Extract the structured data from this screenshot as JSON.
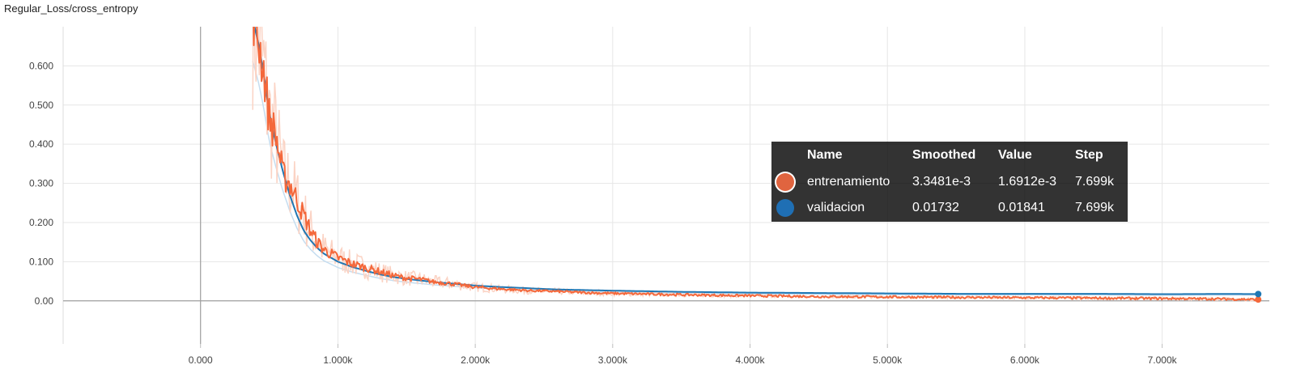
{
  "chart_title": "Regular_Loss/cross_entropy",
  "chart_data": {
    "type": "line",
    "title": "Regular_Loss/cross_entropy",
    "xlabel": "",
    "ylabel": "",
    "xlim": [
      -1000,
      7780
    ],
    "ylim": [
      -0.11,
      0.7
    ],
    "x_ticks": [
      0,
      1000,
      2000,
      3000,
      4000,
      5000,
      6000,
      7000
    ],
    "x_tick_labels": [
      "0.000",
      "1.000k",
      "2.000k",
      "3.000k",
      "4.000k",
      "5.000k",
      "6.000k",
      "7.000k"
    ],
    "y_ticks": [
      0,
      0.1,
      0.2,
      0.3,
      0.4,
      0.5,
      0.6
    ],
    "y_tick_labels": [
      "0.00",
      "0.100",
      "0.200",
      "0.300",
      "0.400",
      "0.500",
      "0.600"
    ],
    "grid": true,
    "series": [
      {
        "name": "entrenamiento",
        "color": "#f4683b",
        "raw_color": "#fbd3c4",
        "x": [
          380,
          420,
          460,
          500,
          550,
          600,
          650,
          700,
          750,
          800,
          850,
          900,
          950,
          1000,
          1100,
          1200,
          1300,
          1400,
          1500,
          1600,
          1700,
          1800,
          1900,
          2000,
          2200,
          2400,
          2600,
          2800,
          3000,
          3300,
          3600,
          4000,
          4500,
          5000,
          5500,
          6000,
          6500,
          7000,
          7400,
          7699
        ],
        "values": [
          0.75,
          0.67,
          0.59,
          0.47,
          0.42,
          0.32,
          0.3,
          0.26,
          0.22,
          0.18,
          0.15,
          0.13,
          0.12,
          0.11,
          0.095,
          0.085,
          0.075,
          0.065,
          0.058,
          0.055,
          0.048,
          0.045,
          0.04,
          0.035,
          0.03,
          0.026,
          0.024,
          0.021,
          0.019,
          0.017,
          0.015,
          0.013,
          0.011,
          0.01,
          0.009,
          0.008,
          0.007,
          0.006,
          0.005,
          0.0033481
        ]
      },
      {
        "name": "validacion",
        "color": "#1f77b4",
        "raw_color": "#c5ddf0",
        "x": [
          380,
          420,
          460,
          500,
          550,
          600,
          650,
          700,
          750,
          800,
          850,
          900,
          950,
          1000,
          1100,
          1200,
          1300,
          1400,
          1500,
          1600,
          1700,
          1800,
          2000,
          2200,
          2400,
          2600,
          3000,
          3500,
          4000,
          4500,
          5000,
          5500,
          6000,
          6500,
          7000,
          7400,
          7699
        ],
        "values": [
          0.72,
          0.66,
          0.58,
          0.48,
          0.4,
          0.33,
          0.27,
          0.22,
          0.18,
          0.155,
          0.135,
          0.12,
          0.11,
          0.1,
          0.087,
          0.077,
          0.068,
          0.061,
          0.056,
          0.052,
          0.048,
          0.045,
          0.039,
          0.035,
          0.032,
          0.029,
          0.026,
          0.023,
          0.021,
          0.02,
          0.019,
          0.018,
          0.018,
          0.018,
          0.017,
          0.0175,
          0.01732
        ]
      }
    ]
  },
  "tooltip": {
    "headers": {
      "name": "Name",
      "smoothed": "Smoothed",
      "value": "Value",
      "step": "Step"
    },
    "rows": [
      {
        "name": "entrenamiento",
        "smoothed": "3.3481e-3",
        "value": "1.6912e-3",
        "step": "7.699k",
        "color": "#e0643f"
      },
      {
        "name": "validacion",
        "smoothed": "0.01732",
        "value": "0.01841",
        "step": "7.699k",
        "color": "#1f6fb4"
      }
    ]
  }
}
